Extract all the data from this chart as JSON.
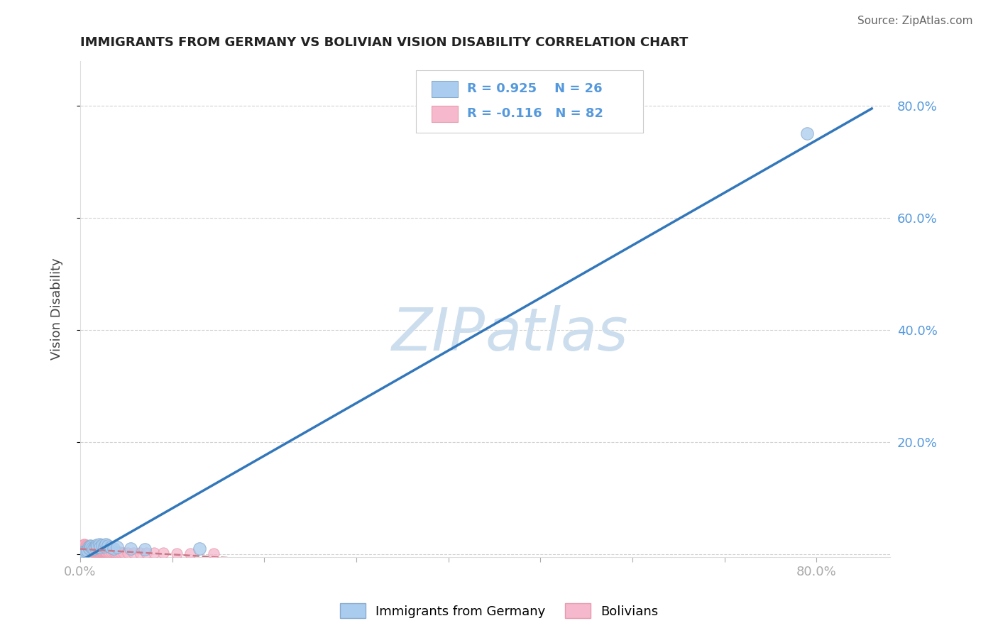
{
  "title": "IMMIGRANTS FROM GERMANY VS BOLIVIAN VISION DISABILITY CORRELATION CHART",
  "source": "Source: ZipAtlas.com",
  "ylabel": "Vision Disability",
  "xlim": [
    0.0,
    0.88
  ],
  "ylim": [
    -0.005,
    0.88
  ],
  "y_ticks": [
    0.0,
    0.2,
    0.4,
    0.6,
    0.8
  ],
  "y_tick_labels": [
    "",
    "20.0%",
    "40.0%",
    "60.0%",
    "80.0%"
  ],
  "x_ticks": [
    0.0,
    0.1,
    0.2,
    0.3,
    0.4,
    0.5,
    0.6,
    0.7,
    0.8
  ],
  "x_tick_labels": [
    "0.0%",
    "",
    "",
    "",
    "",
    "",
    "",
    "",
    "80.0%"
  ],
  "blue_label": "Immigrants from Germany",
  "pink_label": "Bolivians",
  "blue_R": 0.925,
  "blue_N": 26,
  "pink_R": -0.116,
  "pink_N": 82,
  "tick_color": "#5599dd",
  "blue_scatter_color": "#aaccee",
  "blue_scatter_edge": "#88aacc",
  "pink_scatter_color": "#f5b8cc",
  "pink_scatter_edge": "#e89aae",
  "blue_line_color": "#3377bb",
  "pink_line_color": "#cc7788",
  "watermark_color": "#ccdded",
  "background_color": "#ffffff",
  "grid_color": "#cccccc",
  "blue_x": [
    0.002,
    0.004,
    0.006,
    0.008,
    0.009,
    0.01,
    0.011,
    0.012,
    0.013,
    0.015,
    0.016,
    0.018,
    0.019,
    0.021,
    0.022,
    0.024,
    0.026,
    0.028,
    0.03,
    0.033,
    0.036,
    0.04,
    0.055,
    0.07,
    0.13,
    0.79
  ],
  "blue_y": [
    0.003,
    0.004,
    0.005,
    0.006,
    0.012,
    0.01,
    0.015,
    0.014,
    0.011,
    0.01,
    0.013,
    0.016,
    0.014,
    0.018,
    0.012,
    0.016,
    0.014,
    0.018,
    0.015,
    0.013,
    0.01,
    0.012,
    0.01,
    0.008,
    0.01,
    0.75
  ],
  "pink_x": [
    0.001,
    0.001,
    0.002,
    0.002,
    0.003,
    0.003,
    0.003,
    0.004,
    0.004,
    0.004,
    0.005,
    0.005,
    0.005,
    0.006,
    0.006,
    0.006,
    0.007,
    0.007,
    0.007,
    0.008,
    0.008,
    0.008,
    0.009,
    0.009,
    0.009,
    0.01,
    0.01,
    0.01,
    0.011,
    0.011,
    0.011,
    0.012,
    0.012,
    0.013,
    0.013,
    0.013,
    0.014,
    0.014,
    0.015,
    0.015,
    0.015,
    0.016,
    0.016,
    0.017,
    0.017,
    0.018,
    0.018,
    0.019,
    0.019,
    0.02,
    0.02,
    0.021,
    0.021,
    0.022,
    0.022,
    0.023,
    0.023,
    0.024,
    0.024,
    0.025,
    0.025,
    0.026,
    0.027,
    0.028,
    0.029,
    0.03,
    0.032,
    0.034,
    0.036,
    0.038,
    0.04,
    0.043,
    0.047,
    0.052,
    0.058,
    0.065,
    0.072,
    0.08,
    0.09,
    0.105,
    0.12,
    0.145
  ],
  "pink_y": [
    0.008,
    0.015,
    0.007,
    0.013,
    0.006,
    0.01,
    0.016,
    0.007,
    0.012,
    0.018,
    0.007,
    0.011,
    0.017,
    0.006,
    0.01,
    0.016,
    0.007,
    0.011,
    0.015,
    0.006,
    0.01,
    0.014,
    0.006,
    0.009,
    0.013,
    0.006,
    0.009,
    0.013,
    0.006,
    0.009,
    0.012,
    0.005,
    0.009,
    0.005,
    0.008,
    0.012,
    0.005,
    0.008,
    0.005,
    0.008,
    0.011,
    0.005,
    0.008,
    0.005,
    0.007,
    0.005,
    0.007,
    0.005,
    0.007,
    0.004,
    0.007,
    0.004,
    0.006,
    0.004,
    0.006,
    0.004,
    0.006,
    0.004,
    0.006,
    0.004,
    0.005,
    0.004,
    0.004,
    0.004,
    0.004,
    0.003,
    0.003,
    0.003,
    0.003,
    0.003,
    0.003,
    0.003,
    0.002,
    0.002,
    0.002,
    0.002,
    0.002,
    0.002,
    0.002,
    0.001,
    0.001,
    0.001
  ]
}
